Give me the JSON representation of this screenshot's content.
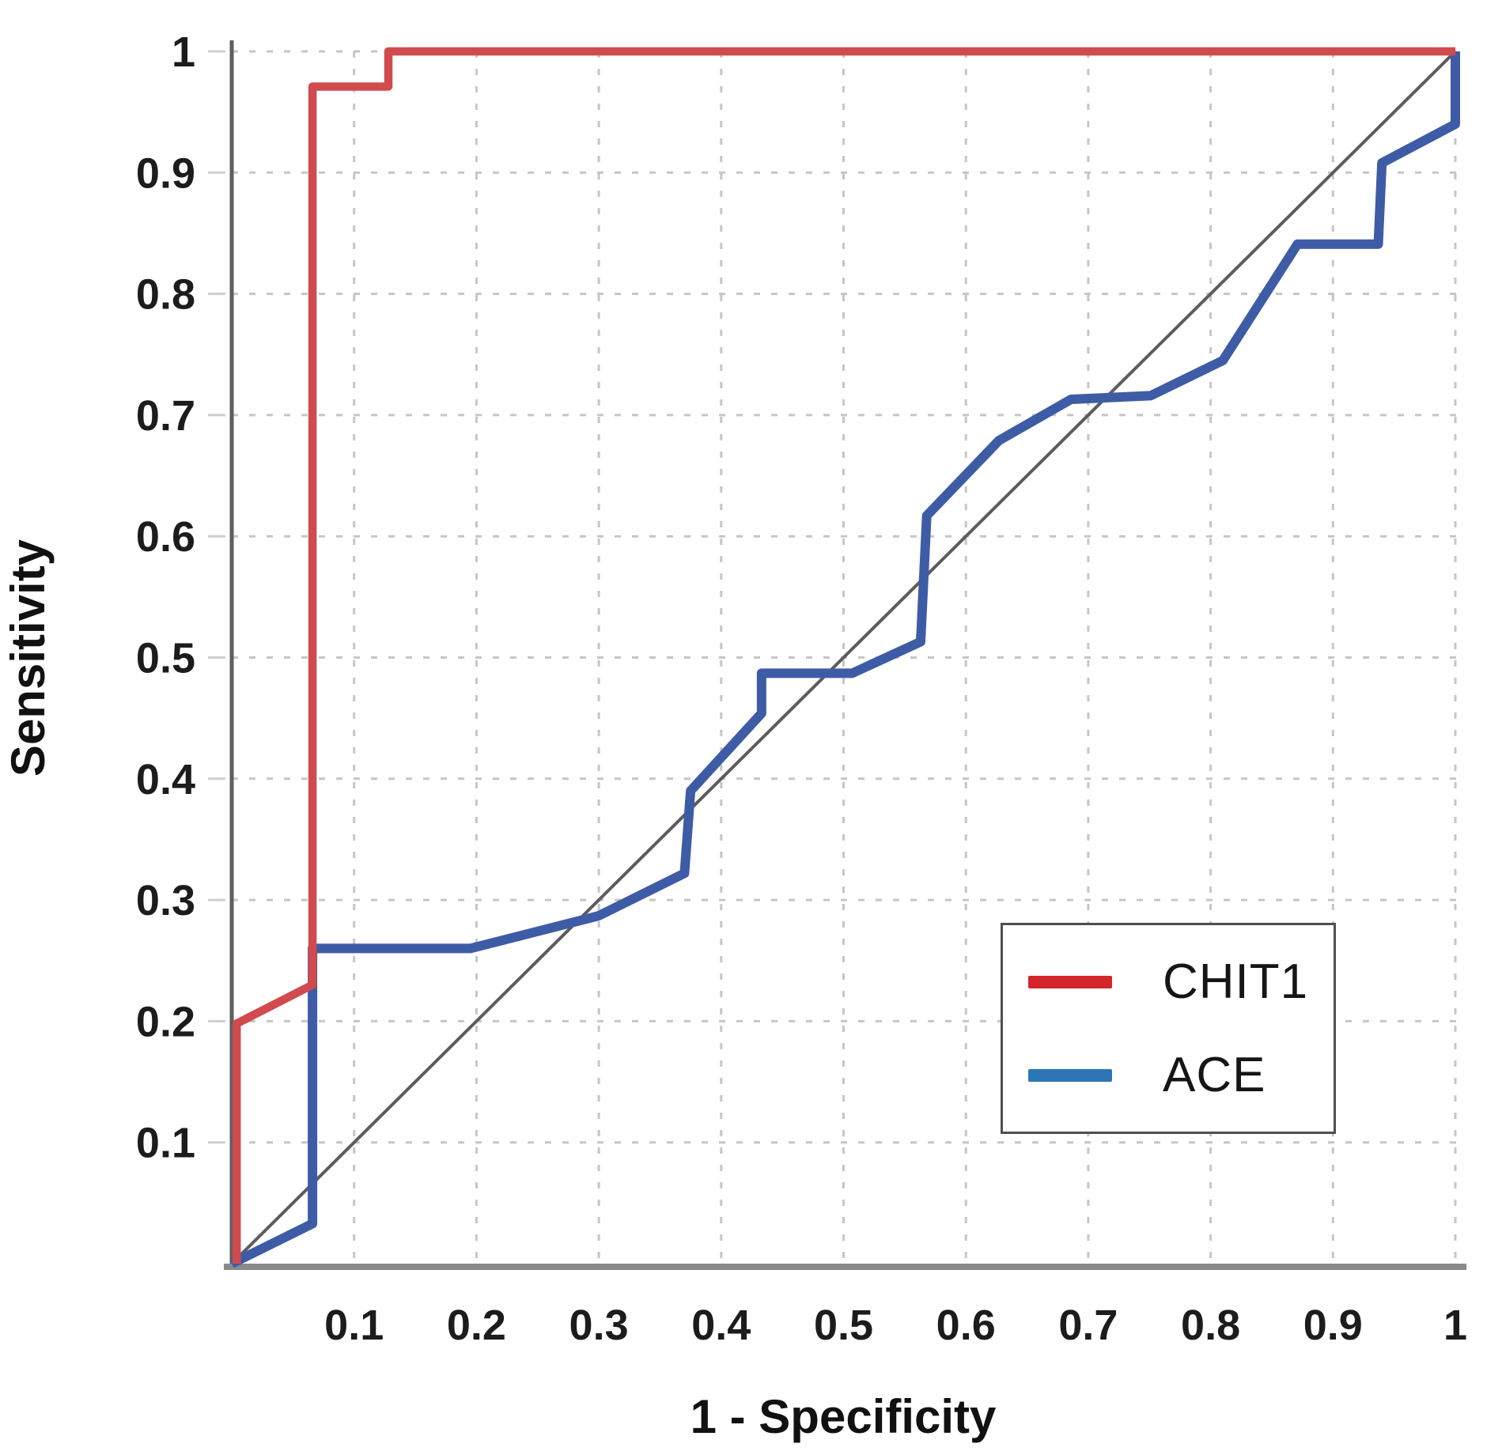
{
  "chart_data": {
    "type": "line",
    "title": "",
    "xlabel": "1 - Specificity",
    "ylabel": "Sensitivity",
    "xlim": [
      0,
      1
    ],
    "ylim": [
      0,
      1
    ],
    "grid": "dashed",
    "legend_position": "lower-right",
    "x_ticks": [
      0.1,
      0.2,
      0.3,
      0.4,
      0.5,
      0.6,
      0.7,
      0.8,
      0.9,
      1
    ],
    "x_tick_labels": [
      "0.1",
      "0.2",
      "0.3",
      "0.4",
      "0.5",
      "0.6",
      "0.7",
      "0.8",
      "0.9",
      "1"
    ],
    "y_ticks": [
      0.1,
      0.2,
      0.3,
      0.4,
      0.5,
      0.6,
      0.7,
      0.8,
      0.9,
      1
    ],
    "y_tick_labels": [
      "0.1",
      "0.2",
      "0.3",
      "0.4",
      "0.5",
      "0.6",
      "0.7",
      "0.8",
      "0.9",
      "1"
    ],
    "reference_line": {
      "points": [
        [
          0,
          0
        ],
        [
          1,
          1
        ]
      ],
      "color": "#5c5c5c"
    },
    "series": [
      {
        "name": "CHIT1",
        "color": "#d04a4e",
        "legend_color": "#d2262b",
        "points": [
          [
            0.004,
            0
          ],
          [
            0.004,
            0.198
          ],
          [
            0.066,
            0.23
          ],
          [
            0.066,
            0.971
          ],
          [
            0.128,
            0.971
          ],
          [
            0.128,
            1
          ],
          [
            1,
            1
          ]
        ]
      },
      {
        "name": "ACE",
        "color": "#3e5ca6",
        "legend_color": "#2e75b5",
        "points": [
          [
            0,
            0
          ],
          [
            0.066,
            0.033
          ],
          [
            0.066,
            0.26
          ],
          [
            0.195,
            0.26
          ],
          [
            0.3,
            0.287
          ],
          [
            0.37,
            0.322
          ],
          [
            0.375,
            0.39
          ],
          [
            0.433,
            0.454
          ],
          [
            0.433,
            0.487
          ],
          [
            0.507,
            0.487
          ],
          [
            0.563,
            0.513
          ],
          [
            0.568,
            0.617
          ],
          [
            0.627,
            0.679
          ],
          [
            0.686,
            0.713
          ],
          [
            0.751,
            0.716
          ],
          [
            0.81,
            0.745
          ],
          [
            0.871,
            0.841
          ],
          [
            0.937,
            0.841
          ],
          [
            0.94,
            0.908
          ],
          [
            1,
            0.94
          ],
          [
            1,
            1
          ]
        ]
      }
    ]
  }
}
